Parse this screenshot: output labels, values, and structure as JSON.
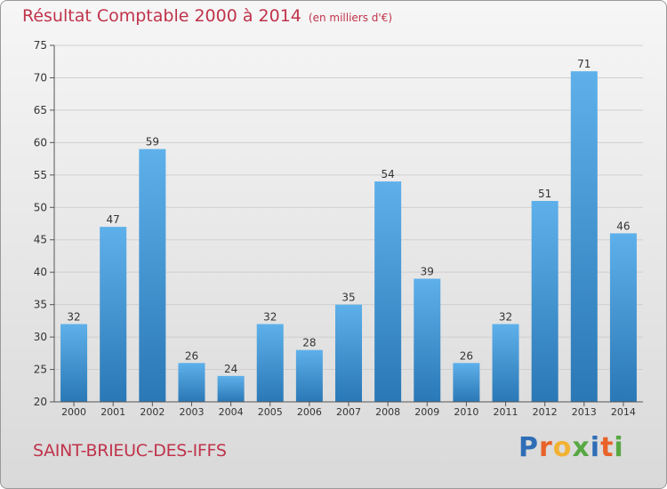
{
  "header": {
    "title": "Résultat Comptable 2000 à 2014",
    "subtitle": "(en milliers d'€)"
  },
  "footer": {
    "commune": "SAINT-BRIEUC-DES-IFFS",
    "logo_letters": [
      "P",
      "r",
      "o",
      "x",
      "i",
      "t",
      "i"
    ],
    "logo_colors": [
      "#2f6eb6",
      "#e8622a",
      "#f2b233",
      "#58a844",
      "#2f6eb6",
      "#e8622a",
      "#58a844"
    ]
  },
  "colors": {
    "bar_top": "#5eb0ea",
    "bar_bottom": "#2a78b6",
    "text": "#333333",
    "accent": "#c0334b"
  },
  "chart_data": {
    "type": "bar",
    "title": "Résultat Comptable 2000 à 2014",
    "subtitle": "(en milliers d'€)",
    "categories": [
      "2000",
      "2001",
      "2002",
      "2003",
      "2004",
      "2005",
      "2006",
      "2007",
      "2008",
      "2009",
      "2010",
      "2011",
      "2012",
      "2013",
      "2014"
    ],
    "values": [
      32,
      47,
      59,
      26,
      24,
      32,
      28,
      35,
      54,
      39,
      26,
      32,
      51,
      71,
      46
    ],
    "ylim": [
      20,
      75
    ],
    "yticks": [
      20,
      25,
      30,
      35,
      40,
      45,
      50,
      55,
      60,
      65,
      70,
      75
    ],
    "xlabel": "",
    "ylabel": "",
    "grid": true
  }
}
